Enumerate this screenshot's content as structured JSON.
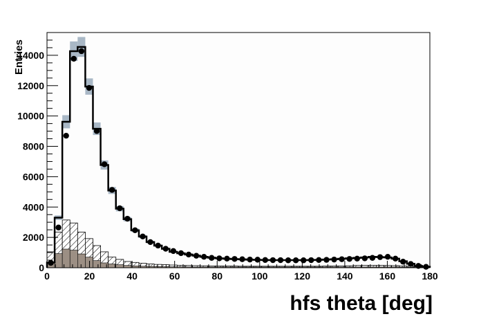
{
  "chart_data": {
    "type": "bar",
    "title": "",
    "xlabel": "hfs theta [deg]",
    "ylabel": "Entries",
    "xlim": [
      0,
      180
    ],
    "ylim": [
      0,
      15500
    ],
    "bin_width": 3.6,
    "xticks": [
      "0",
      "20",
      "40",
      "60",
      "80",
      "100",
      "120",
      "140",
      "160",
      "180"
    ],
    "yticks": [
      "0",
      "2000",
      "4000",
      "6000",
      "8000",
      "10000",
      "12000",
      "14000"
    ],
    "grid": false,
    "legend": "none",
    "colors": {
      "mc_line": "#000000",
      "mc_error_band": "#a9b8c6",
      "background_fill": "#9c8f84",
      "hatch": "#000000",
      "data_marker": "#000000",
      "plot_bg": "#fdfdfd"
    },
    "series": [
      {
        "kind": "mc_total_step",
        "values": [
          350,
          3300,
          9620,
          14270,
          14550,
          11940,
          9160,
          6770,
          5090,
          3890,
          3200,
          2470,
          2060,
          1690,
          1460,
          1250,
          1050,
          950,
          870,
          800,
          720,
          660,
          620,
          590,
          570,
          550,
          530,
          520,
          510,
          500,
          500,
          500,
          500,
          500,
          510,
          520,
          540,
          560,
          590,
          620,
          650,
          680,
          720,
          700,
          680,
          600,
          430,
          260,
          120,
          60
        ]
      },
      {
        "kind": "mc_background_hatched",
        "values": [
          1050,
          2350,
          3150,
          2950,
          2350,
          1920,
          1460,
          1050,
          700,
          550,
          410,
          350,
          300,
          250,
          220,
          200,
          180,
          160,
          150,
          140,
          130,
          120,
          120,
          110,
          110,
          100,
          100,
          100,
          100,
          100,
          100,
          100,
          100,
          100,
          100,
          100,
          110,
          110,
          120,
          130,
          150,
          160,
          160,
          160,
          150,
          140,
          120,
          100,
          60,
          30
        ]
      },
      {
        "kind": "mc_background_filled",
        "values": [
          370,
          930,
          1230,
          1160,
          910,
          700,
          470,
          320,
          250,
          200,
          150,
          120,
          100,
          90,
          80,
          70,
          60,
          60,
          55,
          50,
          50,
          50,
          50,
          50,
          50,
          50,
          50,
          50,
          50,
          50,
          50,
          50,
          50,
          50,
          50,
          50,
          50,
          50,
          50,
          50,
          50,
          50,
          50,
          50,
          50,
          50,
          40,
          30,
          20,
          10
        ]
      },
      {
        "kind": "data_points",
        "values": [
          320,
          2650,
          8700,
          13770,
          14270,
          11850,
          9010,
          6820,
          5130,
          3920,
          3230,
          2470,
          2060,
          1690,
          1460,
          1250,
          1100,
          960,
          870,
          790,
          720,
          650,
          620,
          600,
          580,
          560,
          540,
          530,
          510,
          500,
          500,
          490,
          490,
          490,
          500,
          510,
          520,
          540,
          560,
          580,
          600,
          620,
          650,
          700,
          720,
          600,
          400,
          250,
          120,
          60
        ]
      }
    ]
  }
}
